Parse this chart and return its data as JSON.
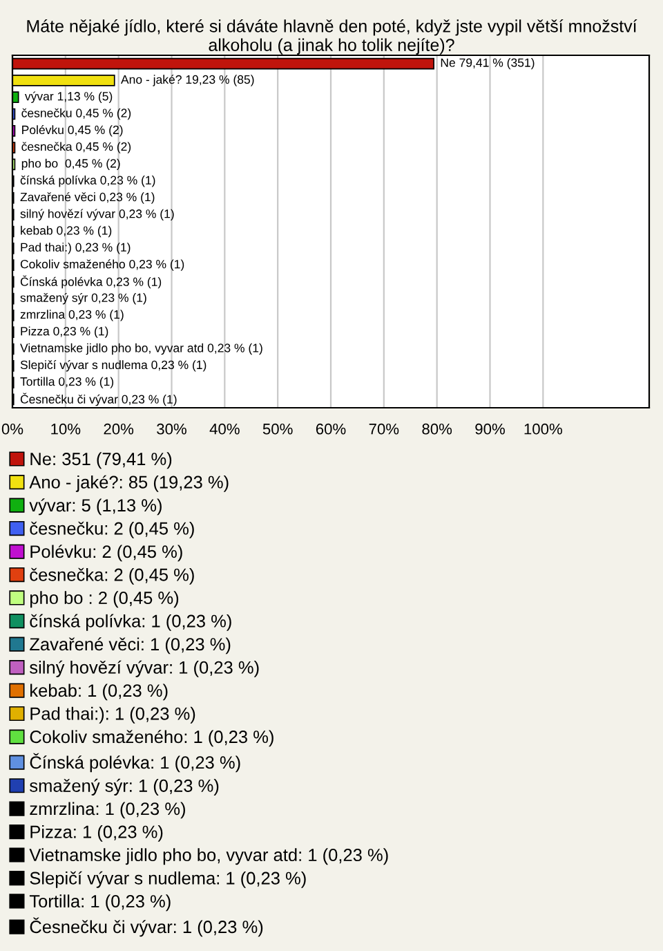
{
  "chart_data": {
    "type": "bar",
    "orientation": "horizontal",
    "title": "Máte nějaké jídlo, které si dáváte hlavně den poté, když jste vypil větší množství alkoholu (a jinak ho tolik nejíte)?",
    "categories": [
      null,
      null,
      null,
      null,
      null,
      null,
      null,
      null,
      null,
      null,
      null,
      null,
      null,
      null,
      null,
      null,
      null,
      null,
      null,
      null,
      null
    ],
    "series": [
      {
        "name": "Ne: 351 (79,41 %)",
        "color": "#c0140c",
        "values": [
          79.41,
          null,
          null,
          null,
          null,
          null,
          null,
          null,
          null,
          null,
          null,
          null,
          null,
          null,
          null,
          null,
          null,
          null,
          null,
          null,
          null
        ],
        "value_labels": [
          "Ne 79,41 % (351)",
          null,
          null,
          null,
          null,
          null,
          null,
          null,
          null,
          null,
          null,
          null,
          null,
          null,
          null,
          null,
          null,
          null,
          null,
          null,
          null
        ]
      },
      {
        "name": "Ano - jaké?: 85 (19,23 %)",
        "color": "#f0e010",
        "values": [
          null,
          19.23,
          null,
          null,
          null,
          null,
          null,
          null,
          null,
          null,
          null,
          null,
          null,
          null,
          null,
          null,
          null,
          null,
          null,
          null,
          null
        ],
        "value_labels": [
          null,
          "Ano - jaké? 19,23 % (85)",
          null,
          null,
          null,
          null,
          null,
          null,
          null,
          null,
          null,
          null,
          null,
          null,
          null,
          null,
          null,
          null,
          null,
          null,
          null
        ]
      },
      {
        "name": "vývar: 5 (1,13 %)",
        "color": "#10b010",
        "values": [
          null,
          null,
          1.13,
          null,
          null,
          null,
          null,
          null,
          null,
          null,
          null,
          null,
          null,
          null,
          null,
          null,
          null,
          null,
          null,
          null,
          null
        ],
        "value_labels": [
          null,
          null,
          "vývar 1,13 % (5)",
          null,
          null,
          null,
          null,
          null,
          null,
          null,
          null,
          null,
          null,
          null,
          null,
          null,
          null,
          null,
          null,
          null,
          null
        ]
      },
      {
        "name": "česnečku: 2 (0,45 %)",
        "color": "#4060f0",
        "values": [
          null,
          null,
          null,
          0.45,
          null,
          null,
          null,
          null,
          null,
          null,
          null,
          null,
          null,
          null,
          null,
          null,
          null,
          null,
          null,
          null,
          null
        ],
        "value_labels": [
          null,
          null,
          null,
          "česnečku 0,45 % (2)",
          null,
          null,
          null,
          null,
          null,
          null,
          null,
          null,
          null,
          null,
          null,
          null,
          null,
          null,
          null,
          null,
          null
        ]
      },
      {
        "name": "Polévku: 2 (0,45 %)",
        "color": "#c010d0",
        "values": [
          null,
          null,
          null,
          null,
          0.45,
          null,
          null,
          null,
          null,
          null,
          null,
          null,
          null,
          null,
          null,
          null,
          null,
          null,
          null,
          null,
          null
        ],
        "value_labels": [
          null,
          null,
          null,
          null,
          "Polévku 0,45 % (2)",
          null,
          null,
          null,
          null,
          null,
          null,
          null,
          null,
          null,
          null,
          null,
          null,
          null,
          null,
          null,
          null
        ]
      },
      {
        "name": "česnečka: 2 (0,45 %)",
        "color": "#e04010",
        "values": [
          null,
          null,
          null,
          null,
          null,
          0.45,
          null,
          null,
          null,
          null,
          null,
          null,
          null,
          null,
          null,
          null,
          null,
          null,
          null,
          null,
          null
        ],
        "value_labels": [
          null,
          null,
          null,
          null,
          null,
          "česnečka 0,45 % (2)",
          null,
          null,
          null,
          null,
          null,
          null,
          null,
          null,
          null,
          null,
          null,
          null,
          null,
          null,
          null
        ]
      },
      {
        "name": "pho bo : 2 (0,45 %)",
        "color": "#c0ff80",
        "values": [
          null,
          null,
          null,
          null,
          null,
          null,
          0.45,
          null,
          null,
          null,
          null,
          null,
          null,
          null,
          null,
          null,
          null,
          null,
          null,
          null,
          null
        ],
        "value_labels": [
          null,
          null,
          null,
          null,
          null,
          null,
          "pho bo  0,45 % (2)",
          null,
          null,
          null,
          null,
          null,
          null,
          null,
          null,
          null,
          null,
          null,
          null,
          null,
          null
        ]
      },
      {
        "name": "čínská polívka: 1 (0,23 %)",
        "color": "#109060",
        "values": [
          null,
          null,
          null,
          null,
          null,
          null,
          null,
          0.23,
          null,
          null,
          null,
          null,
          null,
          null,
          null,
          null,
          null,
          null,
          null,
          null,
          null
        ],
        "value_labels": [
          null,
          null,
          null,
          null,
          null,
          null,
          null,
          "čínská polívka 0,23 % (1)",
          null,
          null,
          null,
          null,
          null,
          null,
          null,
          null,
          null,
          null,
          null,
          null,
          null
        ]
      },
      {
        "name": "Zavařené věci: 1 (0,23 %)",
        "color": "#207890",
        "values": [
          null,
          null,
          null,
          null,
          null,
          null,
          null,
          null,
          0.23,
          null,
          null,
          null,
          null,
          null,
          null,
          null,
          null,
          null,
          null,
          null,
          null
        ],
        "value_labels": [
          null,
          null,
          null,
          null,
          null,
          null,
          null,
          null,
          "Zavařené věci 0,23 % (1)",
          null,
          null,
          null,
          null,
          null,
          null,
          null,
          null,
          null,
          null,
          null,
          null
        ]
      },
      {
        "name": "silný hovězí vývar: 1 (0,23 %)",
        "color": "#c060c0",
        "values": [
          null,
          null,
          null,
          null,
          null,
          null,
          null,
          null,
          null,
          0.23,
          null,
          null,
          null,
          null,
          null,
          null,
          null,
          null,
          null,
          null,
          null
        ],
        "value_labels": [
          null,
          null,
          null,
          null,
          null,
          null,
          null,
          null,
          null,
          "silný hovězí vývar 0,23 % (1)",
          null,
          null,
          null,
          null,
          null,
          null,
          null,
          null,
          null,
          null,
          null
        ]
      },
      {
        "name": "kebab: 1 (0,23 %)",
        "color": "#e07000",
        "values": [
          null,
          null,
          null,
          null,
          null,
          null,
          null,
          null,
          null,
          null,
          0.23,
          null,
          null,
          null,
          null,
          null,
          null,
          null,
          null,
          null,
          null
        ],
        "value_labels": [
          null,
          null,
          null,
          null,
          null,
          null,
          null,
          null,
          null,
          null,
          "kebab 0,23 % (1)",
          null,
          null,
          null,
          null,
          null,
          null,
          null,
          null,
          null,
          null
        ]
      },
      {
        "name": "Pad thai:): 1 (0,23 %)",
        "color": "#e0b000",
        "values": [
          null,
          null,
          null,
          null,
          null,
          null,
          null,
          null,
          null,
          null,
          null,
          0.23,
          null,
          null,
          null,
          null,
          null,
          null,
          null,
          null,
          null
        ],
        "value_labels": [
          null,
          null,
          null,
          null,
          null,
          null,
          null,
          null,
          null,
          null,
          null,
          "Pad thai:) 0,23 % (1)",
          null,
          null,
          null,
          null,
          null,
          null,
          null,
          null,
          null
        ]
      },
      {
        "name": "Cokoliv smaženého: 1 (0,23 %)",
        "color": "#60e040",
        "values": [
          null,
          null,
          null,
          null,
          null,
          null,
          null,
          null,
          null,
          null,
          null,
          null,
          0.23,
          null,
          null,
          null,
          null,
          null,
          null,
          null,
          null
        ],
        "value_labels": [
          null,
          null,
          null,
          null,
          null,
          null,
          null,
          null,
          null,
          null,
          null,
          null,
          "Cokoliv smaženého 0,23 % (1)",
          null,
          null,
          null,
          null,
          null,
          null,
          null,
          null
        ]
      },
      {
        "name": "Čínská polévka: 1 (0,23 %)",
        "color": "#6090e0",
        "values": [
          null,
          null,
          null,
          null,
          null,
          null,
          null,
          null,
          null,
          null,
          null,
          null,
          null,
          0.23,
          null,
          null,
          null,
          null,
          null,
          null,
          null
        ],
        "value_labels": [
          null,
          null,
          null,
          null,
          null,
          null,
          null,
          null,
          null,
          null,
          null,
          null,
          null,
          "Čínská polévka 0,23 % (1)",
          null,
          null,
          null,
          null,
          null,
          null,
          null
        ]
      },
      {
        "name": "smažený sýr: 1 (0,23 %)",
        "color": "#2040b0",
        "values": [
          null,
          null,
          null,
          null,
          null,
          null,
          null,
          null,
          null,
          null,
          null,
          null,
          null,
          null,
          0.23,
          null,
          null,
          null,
          null,
          null,
          null
        ],
        "value_labels": [
          null,
          null,
          null,
          null,
          null,
          null,
          null,
          null,
          null,
          null,
          null,
          null,
          null,
          null,
          "smažený sýr 0,23 % (1)",
          null,
          null,
          null,
          null,
          null,
          null
        ]
      },
      {
        "name": "zmrzlina: 1 (0,23 %)",
        "color": "#000000",
        "values": [
          null,
          null,
          null,
          null,
          null,
          null,
          null,
          null,
          null,
          null,
          null,
          null,
          null,
          null,
          null,
          0.23,
          null,
          null,
          null,
          null,
          null
        ],
        "value_labels": [
          null,
          null,
          null,
          null,
          null,
          null,
          null,
          null,
          null,
          null,
          null,
          null,
          null,
          null,
          null,
          "zmrzlina 0,23 % (1)",
          null,
          null,
          null,
          null,
          null
        ]
      },
      {
        "name": "Pizza: 1 (0,23 %)",
        "color": "#000000",
        "values": [
          null,
          null,
          null,
          null,
          null,
          null,
          null,
          null,
          null,
          null,
          null,
          null,
          null,
          null,
          null,
          null,
          0.23,
          null,
          null,
          null,
          null
        ],
        "value_labels": [
          null,
          null,
          null,
          null,
          null,
          null,
          null,
          null,
          null,
          null,
          null,
          null,
          null,
          null,
          null,
          null,
          "Pizza 0,23 % (1)",
          null,
          null,
          null,
          null
        ]
      },
      {
        "name": "Vietnamske jidlo pho bo, vyvar atd: 1 (0,23 %)",
        "color": "#000000",
        "values": [
          null,
          null,
          null,
          null,
          null,
          null,
          null,
          null,
          null,
          null,
          null,
          null,
          null,
          null,
          null,
          null,
          null,
          0.23,
          null,
          null,
          null
        ],
        "value_labels": [
          null,
          null,
          null,
          null,
          null,
          null,
          null,
          null,
          null,
          null,
          null,
          null,
          null,
          null,
          null,
          null,
          null,
          "Vietnamske jidlo pho bo, vyvar atd 0,23 % (1)",
          null,
          null,
          null
        ]
      },
      {
        "name": "Slepičí vývar s nudlema: 1 (0,23 %)",
        "color": "#000000",
        "values": [
          null,
          null,
          null,
          null,
          null,
          null,
          null,
          null,
          null,
          null,
          null,
          null,
          null,
          null,
          null,
          null,
          null,
          null,
          0.23,
          null,
          null
        ],
        "value_labels": [
          null,
          null,
          null,
          null,
          null,
          null,
          null,
          null,
          null,
          null,
          null,
          null,
          null,
          null,
          null,
          null,
          null,
          null,
          "Slepičí vývar s nudlema 0,23 % (1)",
          null,
          null
        ]
      },
      {
        "name": "Tortilla: 1 (0,23 %)",
        "color": "#000000",
        "values": [
          null,
          null,
          null,
          null,
          null,
          null,
          null,
          null,
          null,
          null,
          null,
          null,
          null,
          null,
          null,
          null,
          null,
          null,
          null,
          0.23,
          null
        ],
        "value_labels": [
          null,
          null,
          null,
          null,
          null,
          null,
          null,
          null,
          null,
          null,
          null,
          null,
          null,
          null,
          null,
          null,
          null,
          null,
          null,
          "Tortilla 0,23 % (1)",
          null
        ]
      },
      {
        "name": "Česnečku či vývar: 1 (0,23 %)",
        "color": "#000000",
        "values": [
          null,
          null,
          null,
          null,
          null,
          null,
          null,
          null,
          null,
          null,
          null,
          null,
          null,
          null,
          null,
          null,
          null,
          null,
          null,
          null,
          0.23
        ],
        "value_labels": [
          null,
          null,
          null,
          null,
          null,
          null,
          null,
          null,
          null,
          null,
          null,
          null,
          null,
          null,
          null,
          null,
          null,
          null,
          null,
          null,
          "Česnečku či vývar 0,23 % (1)"
        ]
      }
    ],
    "xlim": [
      0,
      120
    ],
    "xticks": [
      {
        "value": 0,
        "label": "0%"
      },
      {
        "value": 10,
        "label": "10%"
      },
      {
        "value": 20,
        "label": "20%"
      },
      {
        "value": 30,
        "label": "30%"
      },
      {
        "value": 40,
        "label": "40%"
      },
      {
        "value": 50,
        "label": "50%"
      },
      {
        "value": 60,
        "label": "60%"
      },
      {
        "value": 70,
        "label": "70%"
      },
      {
        "value": 80,
        "label": "80%"
      },
      {
        "value": 90,
        "label": "90%"
      },
      {
        "value": 100,
        "label": "100%"
      }
    ],
    "grid": "x",
    "legend": "bottom",
    "tick_labels": "x"
  }
}
